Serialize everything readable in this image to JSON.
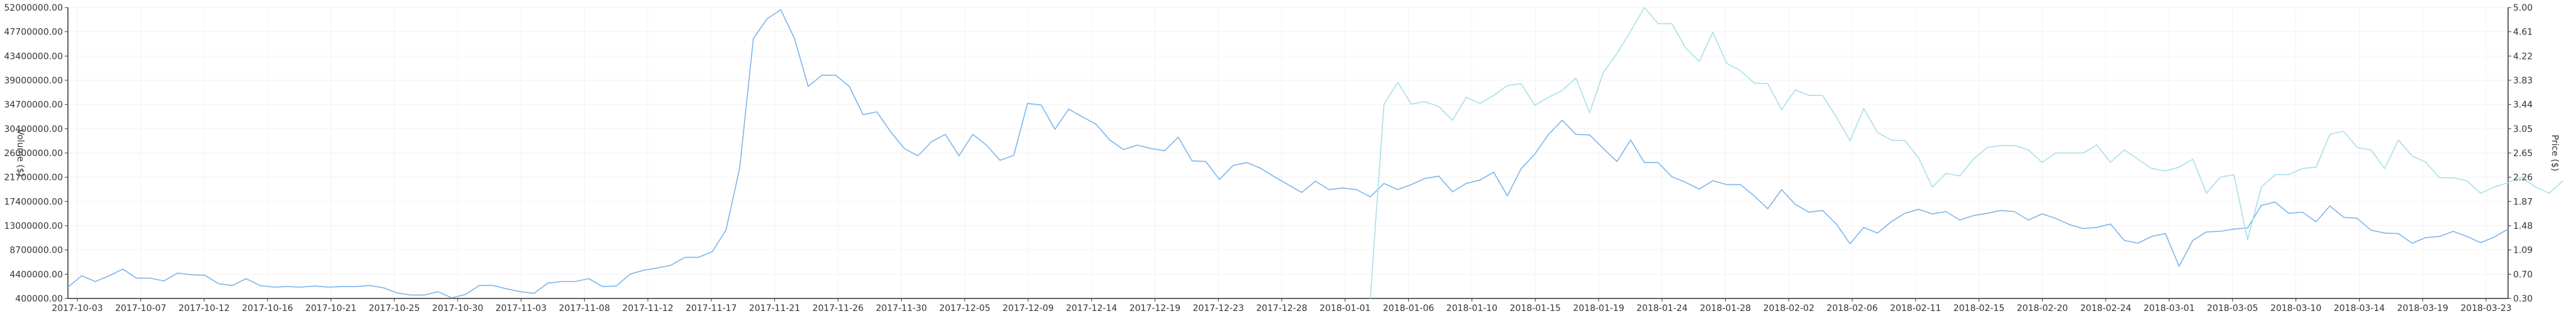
{
  "chart_data": {
    "type": "line",
    "title": "",
    "xlabel": "",
    "ylabel_left": "Volume ($)",
    "ylabel_right": "Price ($)",
    "grid": true,
    "colors": {
      "volume": "#7cb5ec",
      "price": "#a8dfe8",
      "axis": "#333333",
      "grid": "#f2f2f2"
    },
    "x_tick_labels": [
      "2017-10-03",
      "2017-10-07",
      "2017-10-12",
      "2017-10-16",
      "2017-10-21",
      "2017-10-25",
      "2017-10-30",
      "2017-11-03",
      "2017-11-08",
      "2017-11-12",
      "2017-11-17",
      "2017-11-21",
      "2017-11-26",
      "2017-11-30",
      "2017-12-05",
      "2017-12-09",
      "2017-12-14",
      "2017-12-19",
      "2017-12-23",
      "2017-12-28",
      "2018-01-01",
      "2018-01-06",
      "2018-01-10",
      "2018-01-15",
      "2018-01-19",
      "2018-01-24",
      "2018-01-28",
      "2018-02-02",
      "2018-02-06",
      "2018-02-11",
      "2018-02-15",
      "2018-02-20",
      "2018-02-24",
      "2018-03-01",
      "2018-03-05",
      "2018-03-10",
      "2018-03-14",
      "2018-03-19",
      "2018-03-23"
    ],
    "y_left_ticks": [
      "400000.00",
      "4400000.00",
      "8700000.00",
      "13000000.00",
      "17400000.00",
      "21700000.00",
      "26000000.00",
      "30400000.00",
      "34700000.00",
      "39000000.00",
      "43400000.00",
      "47700000.00",
      "52000000.00"
    ],
    "y_right_ticks": [
      "0.30",
      "0.70",
      "1.09",
      "1.48",
      "1.87",
      "2.26",
      "2.65",
      "3.05",
      "3.44",
      "3.83",
      "4.22",
      "4.61",
      "5.00"
    ],
    "ylim_left": [
      400000,
      52000000
    ],
    "ylim_right": [
      0.3,
      5.0
    ],
    "series": [
      {
        "name": "Volume ($)",
        "axis": "left",
        "values": [
          2400000,
          4400000,
          3400000,
          4400000,
          5600000,
          4000000,
          4000000,
          3500000,
          4900000,
          4600000,
          4500000,
          3000000,
          2700000,
          3900000,
          2700000,
          2400000,
          2500000,
          2400000,
          2600000,
          2400000,
          2500000,
          2500000,
          2700000,
          2300000,
          1400000,
          1000000,
          1000000,
          1600000,
          500000,
          1100000,
          2700000,
          2700000,
          2100000,
          1600000,
          1300000,
          3100000,
          3400000,
          3400000,
          3900000,
          2500000,
          2600000,
          4700000,
          5400000,
          5800000,
          6300000,
          7700000,
          7700000,
          8700000,
          12500000,
          23500000,
          46500000,
          50000000,
          51600000,
          46500000,
          38000000,
          40000000,
          40000000,
          38000000,
          33000000,
          33500000,
          30000000,
          27000000,
          25700000,
          28200000,
          29500000,
          25700000,
          29500000,
          27600000,
          24900000,
          25800000,
          35000000,
          34700000,
          30400000,
          34000000,
          32600000,
          31300000,
          28500000,
          26800000,
          27600000,
          27000000,
          26600000,
          29000000,
          24800000,
          24700000,
          21500000,
          24000000,
          24500000,
          23500000,
          22000000,
          20600000,
          19200000,
          21200000,
          19700000,
          20000000,
          19700000,
          18400000,
          20800000,
          19700000,
          20600000,
          21700000,
          22100000,
          19300000,
          20800000,
          21400000,
          22800000,
          18600000,
          23400000,
          26000000,
          29500000,
          32000000,
          29500000,
          29400000,
          27000000,
          24700000,
          28500000,
          24500000,
          24500000,
          22000000,
          21000000,
          19800000,
          21300000,
          20600000,
          20600000,
          18600000,
          16300000,
          19700000,
          17100000,
          15700000,
          16000000,
          13600000,
          10100000,
          13000000,
          12000000,
          14000000,
          15500000,
          16200000,
          15400000,
          15800000,
          14300000,
          15100000,
          15500000,
          16000000,
          15800000,
          14300000,
          15400000,
          14600000,
          13500000,
          12800000,
          13000000,
          13600000,
          10700000,
          10200000,
          11400000,
          11900000,
          6100000,
          10700000,
          12200000,
          12300000,
          12700000,
          12900000,
          16900000,
          17500000,
          15500000,
          15700000,
          14000000,
          16800000,
          14800000,
          14600000,
          12500000,
          12000000,
          11900000,
          10200000,
          11200000,
          11400000,
          12300000,
          11400000,
          10300000,
          11300000,
          12700000
        ]
      },
      {
        "name": "Price ($)",
        "axis": "right",
        "start_index": 95,
        "values": [
          0.3,
          3.44,
          3.79,
          3.44,
          3.48,
          3.4,
          3.18,
          3.55,
          3.45,
          3.58,
          3.74,
          3.77,
          3.42,
          3.55,
          3.66,
          3.86,
          3.3,
          3.95,
          4.26,
          4.62,
          5.0,
          4.74,
          4.74,
          4.35,
          4.13,
          4.6,
          4.1,
          3.98,
          3.78,
          3.77,
          3.35,
          3.67,
          3.58,
          3.58,
          3.23,
          2.85,
          3.37,
          2.98,
          2.86,
          2.85,
          2.57,
          2.1,
          2.32,
          2.28,
          2.55,
          2.74,
          2.77,
          2.77,
          2.7,
          2.5,
          2.65,
          2.65,
          2.65,
          2.78,
          2.5,
          2.7,
          2.55,
          2.4,
          2.36,
          2.42,
          2.55,
          2.0,
          2.26,
          2.3,
          1.25,
          2.1,
          2.3,
          2.3,
          2.4,
          2.42,
          2.95,
          3.0,
          2.74,
          2.7,
          2.4,
          2.86,
          2.6,
          2.5,
          2.25,
          2.25,
          2.2,
          2.0,
          2.1,
          2.17,
          2.26,
          2.1,
          2.0,
          2.2
        ]
      }
    ]
  }
}
